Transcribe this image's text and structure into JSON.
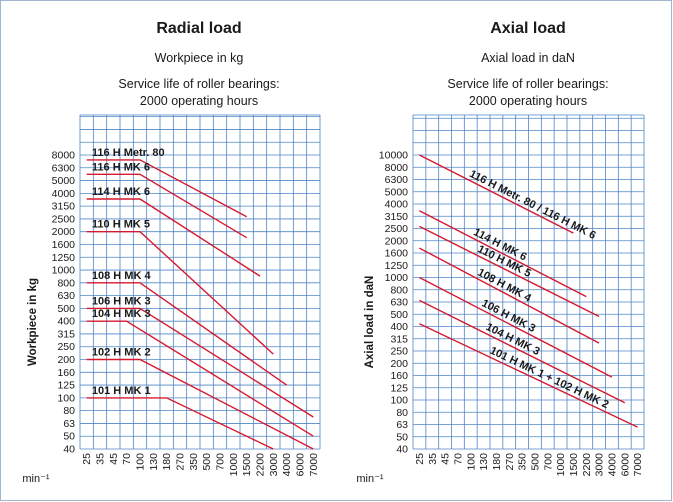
{
  "colors": {
    "grid": "#4f86c6",
    "series": "#d7192d",
    "frame": "#9fb6cc"
  },
  "chart_data": [
    {
      "type": "line",
      "title": "Radial load",
      "subtitle": "Workpiece in kg",
      "note_line1": "Service life of roller bearings:",
      "note_line2": "2000 operating hours",
      "ylabel": "Workpiece in kg",
      "xunit": "min⁻¹",
      "x_scale": "log",
      "y_scale": "log",
      "grid": true,
      "x_ticks": [
        "25",
        "35",
        "45",
        "70",
        "100",
        "130",
        "180",
        "270",
        "350",
        "500",
        "700",
        "1000",
        "1500",
        "2200",
        "3000",
        "4000",
        "6000",
        "7000"
      ],
      "y_ticks": [
        "40",
        "50",
        "63",
        "80",
        "100",
        "125",
        "160",
        "200",
        "250",
        "315",
        "400",
        "500",
        "630",
        "800",
        "1000",
        "1250",
        "1600",
        "2000",
        "2500",
        "3150",
        "4000",
        "5000",
        "6300",
        "8000"
      ],
      "series": [
        {
          "name": "101 H MK 1",
          "points": [
            [
              25,
              100
            ],
            [
              180,
              100
            ],
            [
              180,
              100
            ],
            [
              3000,
              40
            ]
          ]
        },
        {
          "name": "102 H MK 2",
          "points": [
            [
              25,
              200
            ],
            [
              100,
              200
            ],
            [
              7000,
              40
            ]
          ]
        },
        {
          "name": "104 H MK 3",
          "points": [
            [
              25,
              400
            ],
            [
              70,
              400
            ],
            [
              7000,
              50
            ]
          ]
        },
        {
          "name": "106 H MK 3",
          "points": [
            [
              25,
              500
            ],
            [
              100,
              500
            ],
            [
              7000,
              71
            ]
          ]
        },
        {
          "name": "108 H MK 4",
          "points": [
            [
              25,
              800
            ],
            [
              100,
              800
            ],
            [
              4000,
              125
            ]
          ]
        },
        {
          "name": "110 H MK 5",
          "points": [
            [
              25,
              2000
            ],
            [
              100,
              2000
            ],
            [
              3000,
              220
            ]
          ]
        },
        {
          "name": "114 H MK 6",
          "points": [
            [
              25,
              3600
            ],
            [
              100,
              3600
            ],
            [
              2200,
              900
            ]
          ]
        },
        {
          "name": "116 H MK 6",
          "points": [
            [
              25,
              5600
            ],
            [
              100,
              5600
            ],
            [
              1500,
              1800
            ]
          ]
        },
        {
          "name": "116 H Metr. 80",
          "points": [
            [
              25,
              7300
            ],
            [
              100,
              7300
            ],
            [
              1500,
              2600
            ]
          ]
        }
      ]
    },
    {
      "type": "line",
      "title": "Axial load",
      "subtitle": "Axial load in daN",
      "note_line1": "Service life of roller bearings:",
      "note_line2": "2000 operating hours",
      "ylabel": "Axial load in daN",
      "xunit": "min⁻¹",
      "x_scale": "log",
      "y_scale": "log",
      "grid": true,
      "x_ticks": [
        "25",
        "35",
        "45",
        "70",
        "100",
        "130",
        "180",
        "270",
        "350",
        "500",
        "700",
        "1000",
        "1500",
        "2200",
        "3000",
        "4000",
        "6000",
        "7000"
      ],
      "y_ticks": [
        "40",
        "50",
        "63",
        "80",
        "100",
        "125",
        "160",
        "200",
        "250",
        "315",
        "400",
        "500",
        "630",
        "800",
        "1000",
        "1250",
        "1600",
        "2000",
        "2500",
        "3150",
        "4000",
        "5000",
        "6300",
        "8000",
        "10000"
      ],
      "series": [
        {
          "name": "116 H Metr. 80 / 116 H MK 6",
          "points": [
            [
              25,
              10000
            ],
            [
              1500,
              2300
            ]
          ]
        },
        {
          "name": "114 H MK 6",
          "points": [
            [
              25,
              3500
            ],
            [
              2200,
              700
            ]
          ]
        },
        {
          "name": "110 H MK 5",
          "points": [
            [
              25,
              2600
            ],
            [
              3000,
              480
            ]
          ]
        },
        {
          "name": "108 H MK 4",
          "points": [
            [
              25,
              1750
            ],
            [
              3000,
              290
            ]
          ]
        },
        {
          "name": "106 H MK 3",
          "points": [
            [
              25,
              1000
            ],
            [
              4000,
              155
            ]
          ]
        },
        {
          "name": "104 H MK 3",
          "points": [
            [
              25,
              650
            ],
            [
              6000,
              95
            ]
          ]
        },
        {
          "name": "101 H MK 1 + 102 H MK 2",
          "points": [
            [
              25,
              420
            ],
            [
              7000,
              60
            ]
          ]
        }
      ]
    }
  ]
}
